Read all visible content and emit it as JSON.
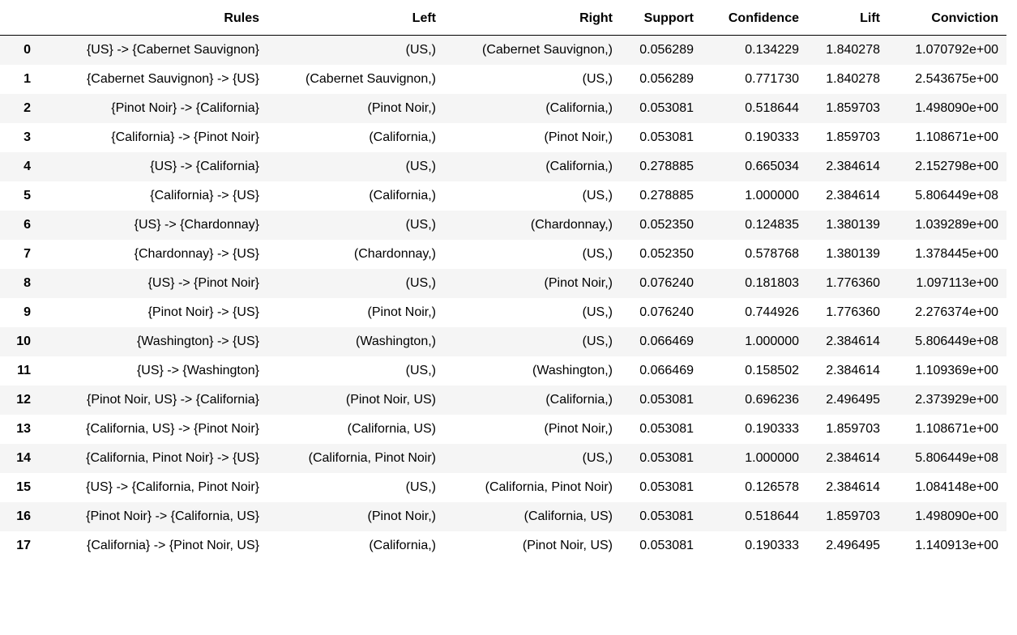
{
  "table": {
    "columns": [
      "Rules",
      "Left",
      "Right",
      "Support",
      "Confidence",
      "Lift",
      "Conviction"
    ],
    "rows": [
      {
        "index": "0",
        "cells": [
          "{US} -> {Cabernet Sauvignon}",
          "(US,)",
          "(Cabernet Sauvignon,)",
          "0.056289",
          "0.134229",
          "1.840278",
          "1.070792e+00"
        ]
      },
      {
        "index": "1",
        "cells": [
          "{Cabernet Sauvignon} -> {US}",
          "(Cabernet Sauvignon,)",
          "(US,)",
          "0.056289",
          "0.771730",
          "1.840278",
          "2.543675e+00"
        ]
      },
      {
        "index": "2",
        "cells": [
          "{Pinot Noir} -> {California}",
          "(Pinot Noir,)",
          "(California,)",
          "0.053081",
          "0.518644",
          "1.859703",
          "1.498090e+00"
        ]
      },
      {
        "index": "3",
        "cells": [
          "{California} -> {Pinot Noir}",
          "(California,)",
          "(Pinot Noir,)",
          "0.053081",
          "0.190333",
          "1.859703",
          "1.108671e+00"
        ]
      },
      {
        "index": "4",
        "cells": [
          "{US} -> {California}",
          "(US,)",
          "(California,)",
          "0.278885",
          "0.665034",
          "2.384614",
          "2.152798e+00"
        ]
      },
      {
        "index": "5",
        "cells": [
          "{California} -> {US}",
          "(California,)",
          "(US,)",
          "0.278885",
          "1.000000",
          "2.384614",
          "5.806449e+08"
        ]
      },
      {
        "index": "6",
        "cells": [
          "{US} -> {Chardonnay}",
          "(US,)",
          "(Chardonnay,)",
          "0.052350",
          "0.124835",
          "1.380139",
          "1.039289e+00"
        ]
      },
      {
        "index": "7",
        "cells": [
          "{Chardonnay} -> {US}",
          "(Chardonnay,)",
          "(US,)",
          "0.052350",
          "0.578768",
          "1.380139",
          "1.378445e+00"
        ]
      },
      {
        "index": "8",
        "cells": [
          "{US} -> {Pinot Noir}",
          "(US,)",
          "(Pinot Noir,)",
          "0.076240",
          "0.181803",
          "1.776360",
          "1.097113e+00"
        ]
      },
      {
        "index": "9",
        "cells": [
          "{Pinot Noir} -> {US}",
          "(Pinot Noir,)",
          "(US,)",
          "0.076240",
          "0.744926",
          "1.776360",
          "2.276374e+00"
        ]
      },
      {
        "index": "10",
        "cells": [
          "{Washington} -> {US}",
          "(Washington,)",
          "(US,)",
          "0.066469",
          "1.000000",
          "2.384614",
          "5.806449e+08"
        ]
      },
      {
        "index": "11",
        "cells": [
          "{US} -> {Washington}",
          "(US,)",
          "(Washington,)",
          "0.066469",
          "0.158502",
          "2.384614",
          "1.109369e+00"
        ]
      },
      {
        "index": "12",
        "cells": [
          "{Pinot Noir, US} -> {California}",
          "(Pinot Noir, US)",
          "(California,)",
          "0.053081",
          "0.696236",
          "2.496495",
          "2.373929e+00"
        ]
      },
      {
        "index": "13",
        "cells": [
          "{California, US} -> {Pinot Noir}",
          "(California, US)",
          "(Pinot Noir,)",
          "0.053081",
          "0.190333",
          "1.859703",
          "1.108671e+00"
        ]
      },
      {
        "index": "14",
        "cells": [
          "{California, Pinot Noir} -> {US}",
          "(California, Pinot Noir)",
          "(US,)",
          "0.053081",
          "1.000000",
          "2.384614",
          "5.806449e+08"
        ]
      },
      {
        "index": "15",
        "cells": [
          "{US} -> {California, Pinot Noir}",
          "(US,)",
          "(California, Pinot Noir)",
          "0.053081",
          "0.126578",
          "2.384614",
          "1.084148e+00"
        ]
      },
      {
        "index": "16",
        "cells": [
          "{Pinot Noir} -> {California, US}",
          "(Pinot Noir,)",
          "(California, US)",
          "0.053081",
          "0.518644",
          "1.859703",
          "1.498090e+00"
        ]
      },
      {
        "index": "17",
        "cells": [
          "{California} -> {Pinot Noir, US}",
          "(California,)",
          "(Pinot Noir, US)",
          "0.053081",
          "0.190333",
          "2.496495",
          "1.140913e+00"
        ]
      }
    ]
  }
}
